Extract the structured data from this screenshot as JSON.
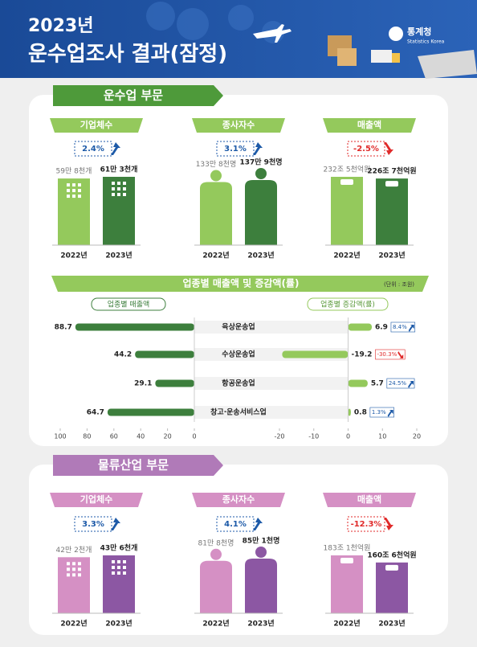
{
  "header": {
    "title_line1": "2023년",
    "title_line2": "운수업조사 결과(잠정)",
    "logo": "통계청",
    "logo_sub": "Statistics Korea"
  },
  "sections": [
    {
      "title": "운수업 부문",
      "colors": {
        "light": "#94c95c",
        "dark": "#3d7f3d",
        "title": "#4e9a3a"
      },
      "panels": [
        {
          "title": "기업체수",
          "change": "2.4%",
          "direction": "up",
          "icon": "building",
          "categories": [
            "2022년",
            "2023년"
          ],
          "values": [
            598,
            613
          ],
          "value_labels": [
            "59만 8천개",
            "61만 3천개"
          ]
        },
        {
          "title": "종사자수",
          "change": "3.1%",
          "direction": "up",
          "icon": "person",
          "categories": [
            "2022년",
            "2023년"
          ],
          "values": [
            1338,
            1379
          ],
          "value_labels": [
            "133만 8천명",
            "137만 9천명"
          ]
        },
        {
          "title": "매출액",
          "change": "-2.5%",
          "direction": "down",
          "icon": "money",
          "categories": [
            "2022년",
            "2023년"
          ],
          "values": [
            2325,
            2267
          ],
          "value_labels": [
            "232조 5천억원",
            "226조 7천억원"
          ]
        }
      ]
    },
    {
      "title": "물류산업 부문",
      "colors": {
        "light": "#d590c4",
        "dark": "#8c57a3",
        "title": "#b07ab8"
      },
      "panels": [
        {
          "title": "기업체수",
          "change": "3.3%",
          "direction": "up",
          "icon": "building",
          "categories": [
            "2022년",
            "2023년"
          ],
          "values": [
            422,
            436
          ],
          "value_labels": [
            "42만 2천개",
            "43만 6천개"
          ]
        },
        {
          "title": "종사자수",
          "change": "4.1%",
          "direction": "up",
          "icon": "person",
          "categories": [
            "2022년",
            "2023년"
          ],
          "values": [
            818,
            851
          ],
          "value_labels": [
            "81만 8천명",
            "85만 1천명"
          ]
        },
        {
          "title": "매출액",
          "change": "-12.3%",
          "direction": "down",
          "icon": "money",
          "categories": [
            "2022년",
            "2023년"
          ],
          "values": [
            1831,
            1606
          ],
          "value_labels": [
            "183조 1천억원",
            "160조 6천억원"
          ]
        }
      ]
    }
  ],
  "chart_data": {
    "type": "bar",
    "title": "업종별 매출액 및 증감액(률)",
    "unit": "(단위 : 조원)",
    "categories": [
      "육상운송업",
      "수상운송업",
      "항공운송업",
      "창고·운송서비스업"
    ],
    "sales": {
      "title": "업종별 매출액",
      "values": [
        88.7,
        44.2,
        29.1,
        64.7
      ],
      "color": "#3d7f3d",
      "xlim": [
        100,
        0
      ],
      "xticks": [
        100,
        80,
        60,
        40,
        20,
        0
      ]
    },
    "change": {
      "title": "업종별 증감액(률)",
      "values": [
        6.9,
        -19.2,
        5.7,
        0.8
      ],
      "color": "#94c95c",
      "rates": [
        8.4,
        -30.3,
        24.5,
        1.3
      ],
      "rate_labels": [
        "8.4%",
        "-30.3%",
        "24.5%",
        "1.3%"
      ],
      "xlim": [
        -20,
        20
      ],
      "xticks": [
        -20,
        -10,
        0,
        10,
        20
      ]
    }
  }
}
